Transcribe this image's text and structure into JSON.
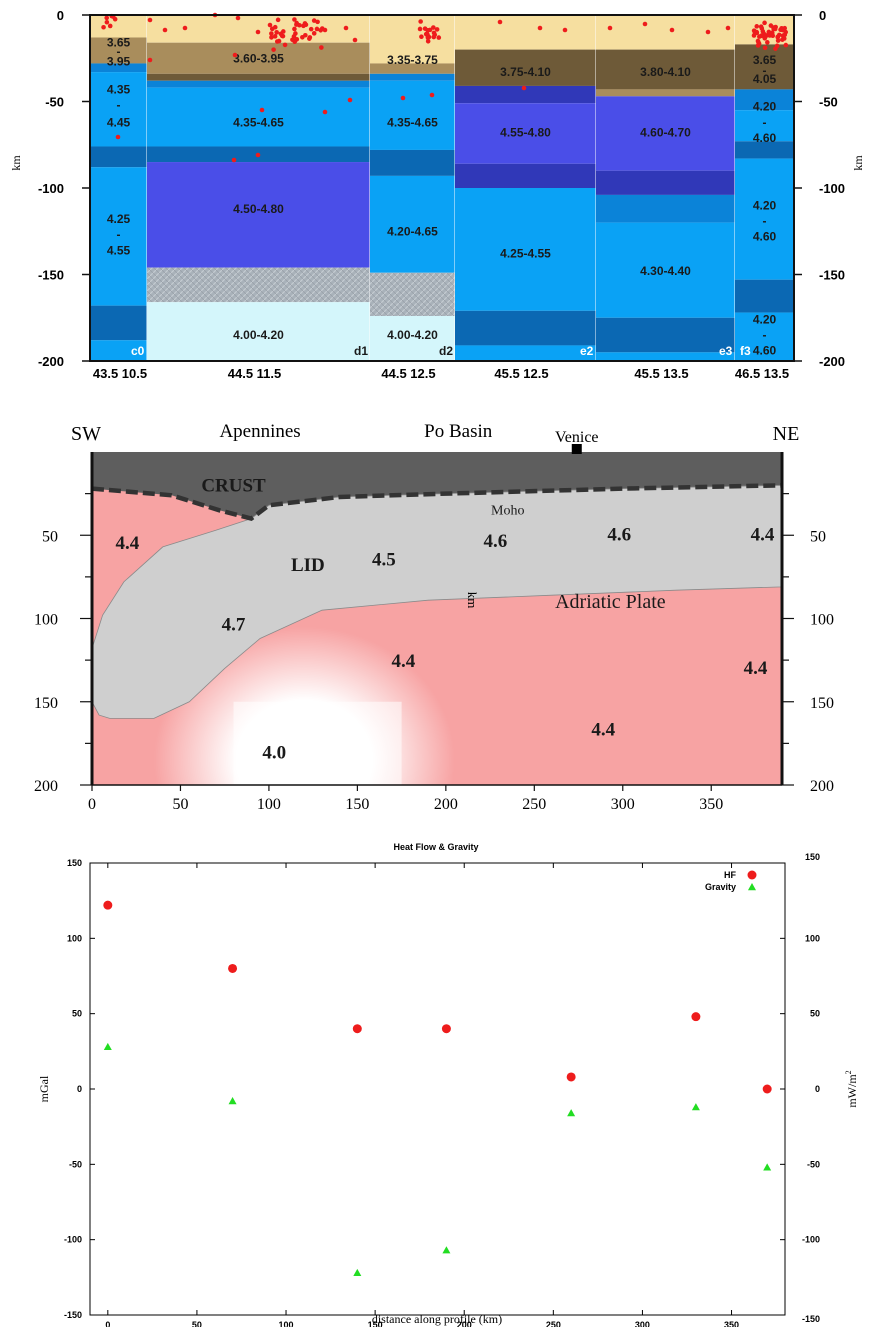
{
  "panel1": {
    "type": "table",
    "y_axis": {
      "label": "km",
      "ticks": [
        "0",
        "-50",
        "-100",
        "-150",
        "-200"
      ],
      "range": [
        -200,
        0
      ]
    },
    "colors": {
      "sediment": "#f6dfa0",
      "tan": "#a98d5c",
      "brown": "#6e5a38",
      "blue_light": "#0aa2f5",
      "blue_mid": "#0b83d8",
      "blue_dark": "#0b68b3",
      "purple": "#4a4ee8",
      "purple_dark": "#3038b8",
      "lightcyan": "#d4f6fb",
      "grey": "#a9b2ba",
      "quake": "#ee1c1c"
    },
    "columns": [
      {
        "id": "c0",
        "x_label": "43.5 10.5",
        "layers": [
          {
            "top": 0,
            "bottom": -13,
            "c": "sediment"
          },
          {
            "top": -13,
            "bottom": -28,
            "c": "tan"
          },
          {
            "top": -28,
            "bottom": -33,
            "c": "blue_mid"
          },
          {
            "top": -33,
            "bottom": -76,
            "c": "blue_light"
          },
          {
            "top": -76,
            "bottom": -88,
            "c": "blue_dark"
          },
          {
            "top": -88,
            "bottom": -168,
            "c": "blue_light"
          },
          {
            "top": -168,
            "bottom": -188,
            "c": "blue_dark"
          },
          {
            "top": -188,
            "bottom": -200,
            "c": "blue_light"
          }
        ],
        "labels": [
          {
            "text": "3.65",
            "v": -16
          },
          {
            "text": "-",
            "v": -21
          },
          {
            "text": "3.95",
            "v": -27
          },
          {
            "text": "4.35",
            "v": -43
          },
          {
            "text": "-",
            "v": -52
          },
          {
            "text": "4.45",
            "v": -62
          },
          {
            "text": "4.25",
            "v": -118
          },
          {
            "text": "-",
            "v": -127
          },
          {
            "text": "4.55",
            "v": -136
          }
        ]
      },
      {
        "id": "d1",
        "x_label": "44.5 11.5",
        "layers": [
          {
            "top": 0,
            "bottom": -16,
            "c": "sediment"
          },
          {
            "top": -16,
            "bottom": -34,
            "c": "tan"
          },
          {
            "top": -34,
            "bottom": -38,
            "c": "brown"
          },
          {
            "top": -38,
            "bottom": -42,
            "c": "blue_mid"
          },
          {
            "top": -42,
            "bottom": -76,
            "c": "blue_light"
          },
          {
            "top": -76,
            "bottom": -85,
            "c": "blue_dark"
          },
          {
            "top": -85,
            "bottom": -146,
            "c": "purple"
          },
          {
            "top": -146,
            "bottom": -166,
            "c": "grey"
          },
          {
            "top": -166,
            "bottom": -200,
            "c": "lightcyan"
          }
        ],
        "labels": [
          {
            "text": "3.60-3.95",
            "v": -25
          },
          {
            "text": "4.35-4.65",
            "v": -62
          },
          {
            "text": "4.50-4.80",
            "v": -112
          },
          {
            "text": "4.00-4.20",
            "v": -185
          }
        ]
      },
      {
        "id": "d2",
        "x_label": "44.5 12.5",
        "layers": [
          {
            "top": 0,
            "bottom": -28,
            "c": "sediment"
          },
          {
            "top": -28,
            "bottom": -34,
            "c": "tan"
          },
          {
            "top": -34,
            "bottom": -38,
            "c": "blue_mid"
          },
          {
            "top": -38,
            "bottom": -78,
            "c": "blue_light"
          },
          {
            "top": -78,
            "bottom": -93,
            "c": "blue_dark"
          },
          {
            "top": -93,
            "bottom": -149,
            "c": "blue_light"
          },
          {
            "top": -149,
            "bottom": -174,
            "c": "grey"
          },
          {
            "top": -174,
            "bottom": -200,
            "c": "lightcyan"
          }
        ],
        "labels": [
          {
            "text": "3.35-3.75",
            "v": -26
          },
          {
            "text": "4.35-4.65",
            "v": -62
          },
          {
            "text": "4.20-4.65",
            "v": -125
          },
          {
            "text": "4.00-4.20",
            "v": -185
          }
        ]
      },
      {
        "id": "e2",
        "x_label": "45.5 12.5",
        "layers": [
          {
            "top": 0,
            "bottom": -20,
            "c": "sediment"
          },
          {
            "top": -20,
            "bottom": -41,
            "c": "brown"
          },
          {
            "top": -41,
            "bottom": -51,
            "c": "purple_dark"
          },
          {
            "top": -51,
            "bottom": -86,
            "c": "purple"
          },
          {
            "top": -86,
            "bottom": -100,
            "c": "purple_dark"
          },
          {
            "top": -100,
            "bottom": -171,
            "c": "blue_light"
          },
          {
            "top": -171,
            "bottom": -191,
            "c": "blue_dark"
          },
          {
            "top": -191,
            "bottom": -200,
            "c": "blue_light"
          }
        ],
        "labels": [
          {
            "text": "3.75-4.10",
            "v": -33
          },
          {
            "text": "4.55-4.80",
            "v": -68
          },
          {
            "text": "4.25-4.55",
            "v": -138
          }
        ]
      },
      {
        "id": "e3",
        "x_label": "45.5 13.5",
        "layers": [
          {
            "top": 0,
            "bottom": -20,
            "c": "sediment"
          },
          {
            "top": -20,
            "bottom": -43,
            "c": "brown"
          },
          {
            "top": -43,
            "bottom": -47,
            "c": "tan"
          },
          {
            "top": -47,
            "bottom": -90,
            "c": "purple"
          },
          {
            "top": -90,
            "bottom": -104,
            "c": "purple_dark"
          },
          {
            "top": -104,
            "bottom": -120,
            "c": "blue_mid"
          },
          {
            "top": -120,
            "bottom": -175,
            "c": "blue_light"
          },
          {
            "top": -175,
            "bottom": -195,
            "c": "blue_dark"
          },
          {
            "top": -195,
            "bottom": -200,
            "c": "blue_light"
          }
        ],
        "labels": [
          {
            "text": "3.80-4.10",
            "v": -33
          },
          {
            "text": "4.60-4.70",
            "v": -68
          },
          {
            "text": "4.30-4.40",
            "v": -148
          }
        ]
      },
      {
        "id": "f3",
        "x_label": "46.5 13.5",
        "layers": [
          {
            "top": 0,
            "bottom": -17,
            "c": "sediment"
          },
          {
            "top": -17,
            "bottom": -43,
            "c": "brown"
          },
          {
            "top": -43,
            "bottom": -55,
            "c": "blue_mid"
          },
          {
            "top": -55,
            "bottom": -73,
            "c": "blue_light"
          },
          {
            "top": -73,
            "bottom": -83,
            "c": "blue_dark"
          },
          {
            "top": -83,
            "bottom": -153,
            "c": "blue_light"
          },
          {
            "top": -153,
            "bottom": -172,
            "c": "blue_dark"
          },
          {
            "top": -172,
            "bottom": -200,
            "c": "blue_light"
          }
        ],
        "labels": [
          {
            "text": "3.65",
            "v": -26
          },
          {
            "text": "-",
            "v": -32
          },
          {
            "text": "4.05",
            "v": -37
          },
          {
            "text": "4.20",
            "v": -53
          },
          {
            "text": "-",
            "v": -62
          },
          {
            "text": "4.60",
            "v": -71
          },
          {
            "text": "4.20",
            "v": -110
          },
          {
            "text": "-",
            "v": -119
          },
          {
            "text": "4.60",
            "v": -128
          },
          {
            "text": "4.20",
            "v": -176
          },
          {
            "text": "-",
            "v": -185
          },
          {
            "text": "4.60",
            "v": -194
          }
        ]
      }
    ]
  },
  "panel2": {
    "type": "area",
    "side_labels": {
      "left": "SW",
      "right": "NE"
    },
    "places": [
      {
        "text": "Apennines",
        "x": 95
      },
      {
        "text": "Po Basin",
        "x": 207
      },
      {
        "text": "Venice",
        "x": 274
      }
    ],
    "region_labels": [
      {
        "text": "CRUST",
        "x": 80,
        "depth": 20,
        "bold": true
      },
      {
        "text": "LID",
        "x": 122,
        "depth": 68,
        "bold": true
      },
      {
        "text": "Moho",
        "x": 235,
        "depth": 34,
        "bold": false,
        "small": true
      },
      {
        "text": "Adriatic Plate",
        "x": 293,
        "depth": 90,
        "bold": false
      }
    ],
    "velocities": [
      {
        "text": "4.4",
        "x": 20,
        "depth": 54
      },
      {
        "text": "4.5",
        "x": 165,
        "depth": 64
      },
      {
        "text": "4.6",
        "x": 228,
        "depth": 53
      },
      {
        "text": "4.6",
        "x": 298,
        "depth": 49
      },
      {
        "text": "4.4",
        "x": 379,
        "depth": 49
      },
      {
        "text": "4.7",
        "x": 80,
        "depth": 103
      },
      {
        "text": "4.4",
        "x": 176,
        "depth": 125
      },
      {
        "text": "4.4",
        "x": 375,
        "depth": 129
      },
      {
        "text": "4.4",
        "x": 289,
        "depth": 166
      },
      {
        "text": "4.0",
        "x": 103,
        "depth": 180
      }
    ],
    "x_axis": {
      "ticks": [
        "0",
        "50",
        "100",
        "150",
        "200",
        "250",
        "300",
        "350"
      ],
      "range": [
        0,
        390
      ]
    },
    "y_axis": {
      "label": "km",
      "ticks": [
        "50",
        "100",
        "150",
        "200"
      ],
      "range": [
        0,
        200
      ]
    },
    "colors": {
      "crust": "#5e5e5e",
      "lid": "#cfcfcf",
      "mantle": "#f7a3a3",
      "moho": "#333333"
    }
  },
  "chart_data": {
    "type": "scatter",
    "title": "Heat Flow & Gravity",
    "xlabel": "distance along profile (km)",
    "ylabel_left": "mGal",
    "ylabel_right": "mW/m",
    "ylabel_right_sup": "2",
    "xlim": [
      -10,
      380
    ],
    "ylim": [
      -150,
      150
    ],
    "x_ticks": [
      "0",
      "50",
      "100",
      "150",
      "200",
      "250",
      "300",
      "350"
    ],
    "y_ticks": [
      "150",
      "100",
      "50",
      "0",
      "-50",
      "-100",
      "-150"
    ],
    "series": [
      {
        "name": "HF",
        "marker": "circle",
        "color": "#ee1c1c",
        "points": [
          [
            0,
            122
          ],
          [
            70,
            80
          ],
          [
            140,
            40
          ],
          [
            190,
            40
          ],
          [
            260,
            8
          ],
          [
            330,
            48
          ],
          [
            370,
            0
          ]
        ]
      },
      {
        "name": "Gravity",
        "marker": "triangle",
        "color": "#22dd22",
        "points": [
          [
            0,
            28
          ],
          [
            70,
            -8
          ],
          [
            140,
            -122
          ],
          [
            190,
            -107
          ],
          [
            260,
            -16
          ],
          [
            330,
            -12
          ],
          [
            370,
            -52
          ]
        ]
      }
    ]
  }
}
